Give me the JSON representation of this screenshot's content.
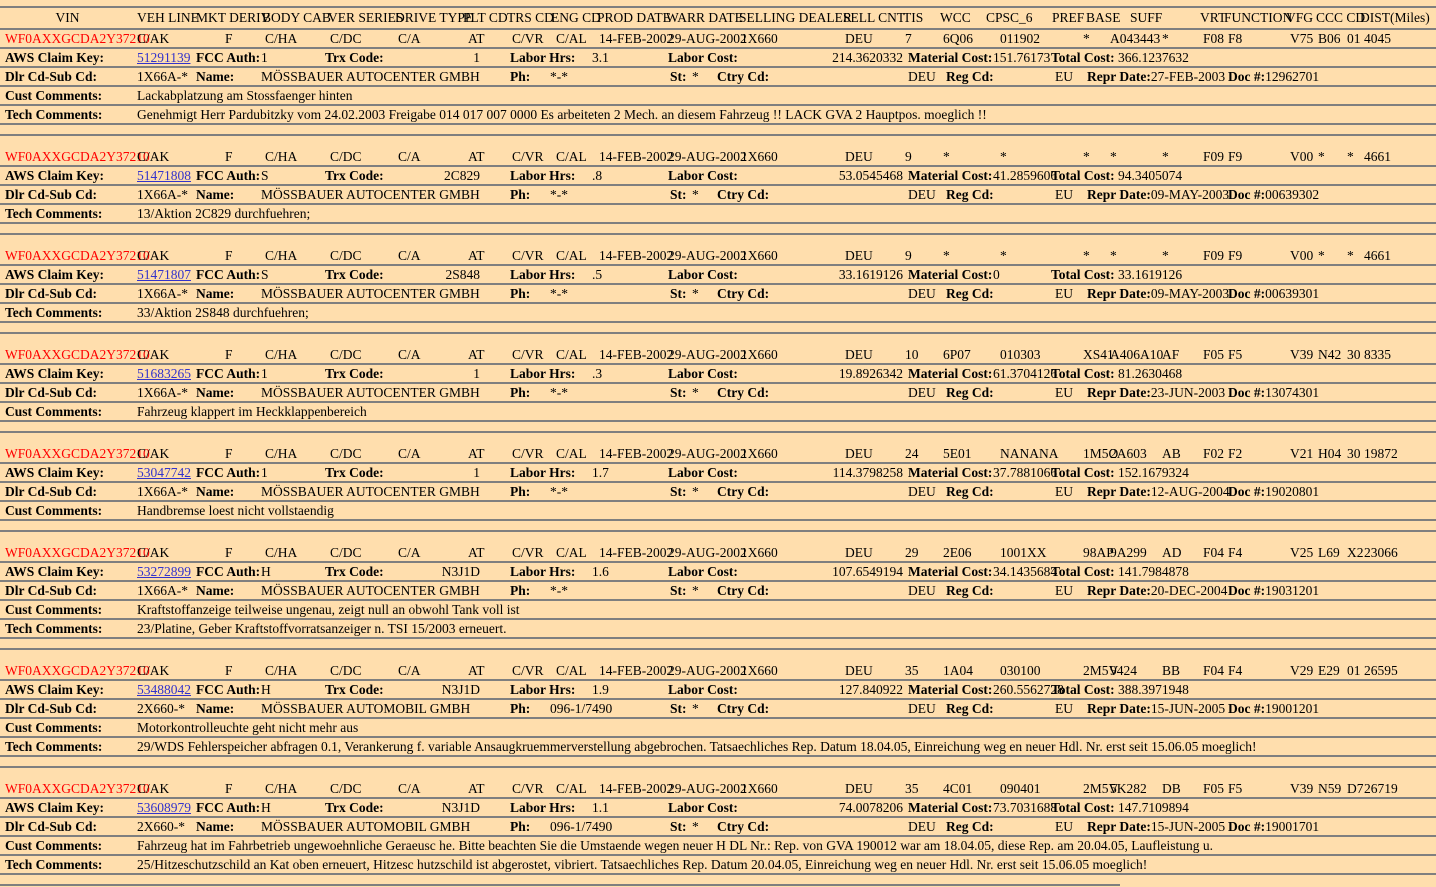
{
  "page": {
    "background": "#FFDEAD",
    "line_color": "#7F7F7F",
    "vin_color": "#FF0000",
    "link_color": "#3333CC"
  },
  "header": {
    "columns": [
      {
        "key": "vin",
        "label": "VIN"
      },
      {
        "key": "veh_line",
        "label": "VEH LINE"
      },
      {
        "key": "mkt_deriv",
        "label": "MKT DERIV"
      },
      {
        "key": "body_cab",
        "label": "BODY CAB"
      },
      {
        "key": "ver_series",
        "label": "VER SERIES"
      },
      {
        "key": "drive_type",
        "label": "DRIVE TYPE"
      },
      {
        "key": "plt_cd",
        "label": "PLT CD"
      },
      {
        "key": "trs_cd",
        "label": "TRS CD"
      },
      {
        "key": "eng_cd",
        "label": "ENG CD"
      },
      {
        "key": "prod_date",
        "label": "PROD DATE"
      },
      {
        "key": "warr_date",
        "label": "WARR DATE"
      },
      {
        "key": "selling_dealer",
        "label": "SELLING DEALER"
      },
      {
        "key": "sell_cnt",
        "label": "SELL CNT"
      },
      {
        "key": "tis",
        "label": "TIS"
      },
      {
        "key": "wcc",
        "label": "WCC"
      },
      {
        "key": "cpsc_6",
        "label": "CPSC_6"
      },
      {
        "key": "pref",
        "label": "PREF"
      },
      {
        "key": "base",
        "label": "BASE"
      },
      {
        "key": "suff",
        "label": "SUFF"
      },
      {
        "key": "vrt",
        "label": "VRT"
      },
      {
        "key": "function",
        "label": "FUNCTION"
      },
      {
        "key": "vfg",
        "label": "VFG"
      },
      {
        "key": "ccc_cd",
        "label": "CCC CD"
      },
      {
        "key": "dist",
        "label": "DIST(Miles)"
      }
    ]
  },
  "labels": {
    "claim_key": "AWS Claim Key:",
    "fcc_auth": "FCC Auth:",
    "trx_code": "Trx Code:",
    "labor_hrs": "Labor Hrs:",
    "labor_cost": "Labor Cost:",
    "material_cost": "Material Cost:",
    "total_cost": "Total Cost:",
    "dlr_cd_sub_cd": "Dlr Cd-Sub Cd:",
    "name": "Name:",
    "ph": "Ph:",
    "st": "St:",
    "ctry_cd": "Ctry Cd:",
    "reg_cd": "Reg Cd:",
    "repr_date": "Repr Date:",
    "doc_num": "Doc #:",
    "cust_comments": "Cust Comments:",
    "tech_comments": "Tech Comments:"
  },
  "records": [
    {
      "vin": "WF0AXXGCDA2Y37210",
      "grid": {
        "veh_line": "C/AK",
        "mkt_deriv": "F",
        "body_cab": "C/HA",
        "ver_series": "C/DC",
        "drive_type": "C/A",
        "plt_cd": "AT",
        "trs_cd": "C/VR",
        "eng_cd": "C/AL",
        "prod_date": "14-FEB-2002",
        "warr_date": "29-AUG-2002",
        "selling_dealer": "1X660",
        "sell_cnt": "DEU",
        "tis": "7",
        "wcc": "6Q06",
        "cpsc_6": "011902",
        "pref": "*",
        "base": "A043443",
        "suff": "*",
        "vrt": "F08",
        "function": "F8",
        "vfg": "V75",
        "ccc": "B06",
        "cd": "01",
        "dist": "4045"
      },
      "claim": {
        "key": "51291139",
        "fcc_auth": "1",
        "trx_code": "1",
        "labor_hrs": "3.1",
        "labor_cost": "214.3620332",
        "material_cost": "151.76173",
        "total_cost": "366.1237632"
      },
      "dealer": {
        "dlr_cd_sub_cd": "1X66A-*",
        "name": "MÖSSBAUER AUTOCENTER GMBH",
        "ph": "*-*",
        "st": "*",
        "ctry_cd": "DEU",
        "reg_cd": "EU",
        "repr_date": "27-FEB-2003",
        "doc_num": "12962701"
      },
      "comments": {
        "cust": "Lackabplatzung am Stossfaenger hinten",
        "tech": "Genehmigt Herr Pardubitzky vom 24.02.2003 Freigabe 014 017 007 0000 Es arbeiteten 2 Mech. an diesem Fahrzeug !! LACK GVA 2 Hauptpos. moeglich !!"
      }
    },
    {
      "vin": "WF0AXXGCDA2Y37210",
      "grid": {
        "veh_line": "C/AK",
        "mkt_deriv": "F",
        "body_cab": "C/HA",
        "ver_series": "C/DC",
        "drive_type": "C/A",
        "plt_cd": "AT",
        "trs_cd": "C/VR",
        "eng_cd": "C/AL",
        "prod_date": "14-FEB-2002",
        "warr_date": "29-AUG-2002",
        "selling_dealer": "1X660",
        "sell_cnt": "DEU",
        "tis": "9",
        "wcc": "*",
        "cpsc_6": "*",
        "pref": "*",
        "base": "*",
        "suff": "*",
        "vrt": "F09",
        "function": "F9",
        "vfg": "V00",
        "ccc": "*",
        "cd": "*",
        "dist": "4661"
      },
      "claim": {
        "key": "51471808",
        "fcc_auth": "S",
        "trx_code": "2C829",
        "labor_hrs": ".8",
        "labor_cost": "53.0545468",
        "material_cost": "41.2859606",
        "total_cost": "94.3405074"
      },
      "dealer": {
        "dlr_cd_sub_cd": "1X66A-*",
        "name": "MÖSSBAUER AUTOCENTER GMBH",
        "ph": "*-*",
        "st": "*",
        "ctry_cd": "DEU",
        "reg_cd": "EU",
        "repr_date": "09-MAY-2003",
        "doc_num": "00639302"
      },
      "comments": {
        "cust": null,
        "tech": "13/Aktion 2C829 durchfuehren;"
      }
    },
    {
      "vin": "WF0AXXGCDA2Y37210",
      "grid": {
        "veh_line": "C/AK",
        "mkt_deriv": "F",
        "body_cab": "C/HA",
        "ver_series": "C/DC",
        "drive_type": "C/A",
        "plt_cd": "AT",
        "trs_cd": "C/VR",
        "eng_cd": "C/AL",
        "prod_date": "14-FEB-2002",
        "warr_date": "29-AUG-2002",
        "selling_dealer": "1X660",
        "sell_cnt": "DEU",
        "tis": "9",
        "wcc": "*",
        "cpsc_6": "*",
        "pref": "*",
        "base": "*",
        "suff": "*",
        "vrt": "F09",
        "function": "F9",
        "vfg": "V00",
        "ccc": "*",
        "cd": "*",
        "dist": "4661"
      },
      "claim": {
        "key": "51471807",
        "fcc_auth": "S",
        "trx_code": "2S848",
        "labor_hrs": ".5",
        "labor_cost": "33.1619126",
        "material_cost": "0",
        "total_cost": "33.1619126"
      },
      "dealer": {
        "dlr_cd_sub_cd": "1X66A-*",
        "name": "MÖSSBAUER AUTOCENTER GMBH",
        "ph": "*-*",
        "st": "*",
        "ctry_cd": "DEU",
        "reg_cd": "EU",
        "repr_date": "09-MAY-2003",
        "doc_num": "00639301"
      },
      "comments": {
        "cust": null,
        "tech": "33/Aktion 2S848 durchfuehren;"
      }
    },
    {
      "vin": "WF0AXXGCDA2Y37210",
      "grid": {
        "veh_line": "C/AK",
        "mkt_deriv": "F",
        "body_cab": "C/HA",
        "ver_series": "C/DC",
        "drive_type": "C/A",
        "plt_cd": "AT",
        "trs_cd": "C/VR",
        "eng_cd": "C/AL",
        "prod_date": "14-FEB-2002",
        "warr_date": "29-AUG-2002",
        "selling_dealer": "1X660",
        "sell_cnt": "DEU",
        "tis": "10",
        "wcc": "6P07",
        "cpsc_6": "010303",
        "pref": "XS41",
        "base": "A406A10",
        "suff": "AF",
        "vrt": "F05",
        "function": "F5",
        "vfg": "V39",
        "ccc": "N42",
        "cd": "30",
        "dist": "8335"
      },
      "claim": {
        "key": "51683265",
        "fcc_auth": "1",
        "trx_code": "1",
        "labor_hrs": ".3",
        "labor_cost": "19.8926342",
        "material_cost": "61.3704126",
        "total_cost": "81.2630468"
      },
      "dealer": {
        "dlr_cd_sub_cd": "1X66A-*",
        "name": "MÖSSBAUER AUTOCENTER GMBH",
        "ph": "*-*",
        "st": "*",
        "ctry_cd": "DEU",
        "reg_cd": "EU",
        "repr_date": "23-JUN-2003",
        "doc_num": "13074301"
      },
      "comments": {
        "cust": "Fahrzeug klappert im Heckklappenbereich",
        "tech": null
      }
    },
    {
      "vin": "WF0AXXGCDA2Y37210",
      "grid": {
        "veh_line": "C/AK",
        "mkt_deriv": "F",
        "body_cab": "C/HA",
        "ver_series": "C/DC",
        "drive_type": "C/A",
        "plt_cd": "AT",
        "trs_cd": "C/VR",
        "eng_cd": "C/AL",
        "prod_date": "14-FEB-2002",
        "warr_date": "29-AUG-2002",
        "selling_dealer": "1X660",
        "sell_cnt": "DEU",
        "tis": "24",
        "wcc": "5E01",
        "cpsc_6": "NANANA",
        "pref": "1M5O",
        "base": "2A603",
        "suff": "AB",
        "vrt": "F02",
        "function": "F2",
        "vfg": "V21",
        "ccc": "H04",
        "cd": "30",
        "dist": "19872"
      },
      "claim": {
        "key": "53047742",
        "fcc_auth": "1",
        "trx_code": "1",
        "labor_hrs": "1.7",
        "labor_cost": "114.3798258",
        "material_cost": "37.7881066",
        "total_cost": "152.1679324"
      },
      "dealer": {
        "dlr_cd_sub_cd": "1X66A-*",
        "name": "MÖSSBAUER AUTOCENTER GMBH",
        "ph": "*-*",
        "st": "*",
        "ctry_cd": "DEU",
        "reg_cd": "EU",
        "repr_date": "12-AUG-2004",
        "doc_num": "19020801"
      },
      "comments": {
        "cust": "Handbremse loest nicht vollstaendig",
        "tech": null
      }
    },
    {
      "vin": "WF0AXXGCDA2Y37210",
      "grid": {
        "veh_line": "C/AK",
        "mkt_deriv": "F",
        "body_cab": "C/HA",
        "ver_series": "C/DC",
        "drive_type": "C/A",
        "plt_cd": "AT",
        "trs_cd": "C/VR",
        "eng_cd": "C/AL",
        "prod_date": "14-FEB-2002",
        "warr_date": "29-AUG-2002",
        "selling_dealer": "1X660",
        "sell_cnt": "DEU",
        "tis": "29",
        "wcc": "2E06",
        "cpsc_6": "1001XX",
        "pref": "98AP",
        "base": "9A299",
        "suff": "AD",
        "vrt": "F04",
        "function": "F4",
        "vfg": "V25",
        "ccc": "L69",
        "cd": "X2",
        "dist": "23066"
      },
      "claim": {
        "key": "53272899",
        "fcc_auth": "H",
        "trx_code": "N3J1D",
        "labor_hrs": "1.6",
        "labor_cost": "107.6549194",
        "material_cost": "34.1435684",
        "total_cost": "141.7984878"
      },
      "dealer": {
        "dlr_cd_sub_cd": "1X66A-*",
        "name": "MÖSSBAUER AUTOCENTER GMBH",
        "ph": "*-*",
        "st": "*",
        "ctry_cd": "DEU",
        "reg_cd": "EU",
        "repr_date": "20-DEC-2004",
        "doc_num": "19031201"
      },
      "comments": {
        "cust": "Kraftstoffanzeige teilweise ungenau, zeigt null an obwohl Tank voll ist",
        "tech": "23/Platine, Geber Kraftstoffvorratsanzeiger n. TSI 15/2003 erneuert."
      }
    },
    {
      "vin": "WF0AXXGCDA2Y37210",
      "grid": {
        "veh_line": "C/AK",
        "mkt_deriv": "F",
        "body_cab": "C/HA",
        "ver_series": "C/DC",
        "drive_type": "C/A",
        "plt_cd": "AT",
        "trs_cd": "C/VR",
        "eng_cd": "C/AL",
        "prod_date": "14-FEB-2002",
        "warr_date": "29-AUG-2002",
        "selling_dealer": "1X660",
        "sell_cnt": "DEU",
        "tis": "35",
        "wcc": "1A04",
        "cpsc_6": "030100",
        "pref": "2M5V",
        "base": "9424",
        "suff": "BB",
        "vrt": "F04",
        "function": "F4",
        "vfg": "V29",
        "ccc": "E29",
        "cd": "01",
        "dist": "26595"
      },
      "claim": {
        "key": "53488042",
        "fcc_auth": "H",
        "trx_code": "N3J1D",
        "labor_hrs": "1.9",
        "labor_cost": "127.840922",
        "material_cost": "260.5562728",
        "total_cost": "388.3971948"
      },
      "dealer": {
        "dlr_cd_sub_cd": "2X660-*",
        "name": "MÖSSBAUER AUTOMOBIL GMBH",
        "ph": "096-1/7490",
        "st": "*",
        "ctry_cd": "DEU",
        "reg_cd": "EU",
        "repr_date": "15-JUN-2005",
        "doc_num": "19001201"
      },
      "comments": {
        "cust": "Motorkontrolleuchte geht nicht mehr aus",
        "tech": "29/WDS Fehlerspeicher abfragen 0.1, Verankerung f. variable Ansaugkruemmerverstellung abgebrochen. Tatsaechliches Rep. Datum 18.04.05, Einreichung weg en neuer Hdl. Nr. erst seit 15.06.05 moeglich!"
      }
    },
    {
      "vin": "WF0AXXGCDA2Y37210",
      "grid": {
        "veh_line": "C/AK",
        "mkt_deriv": "F",
        "body_cab": "C/HA",
        "ver_series": "C/DC",
        "drive_type": "C/A",
        "plt_cd": "AT",
        "trs_cd": "C/VR",
        "eng_cd": "C/AL",
        "prod_date": "14-FEB-2002",
        "warr_date": "29-AUG-2002",
        "selling_dealer": "1X660",
        "sell_cnt": "DEU",
        "tis": "35",
        "wcc": "4C01",
        "cpsc_6": "090401",
        "pref": "2M5V",
        "base": "5K282",
        "suff": "DB",
        "vrt": "F05",
        "function": "F5",
        "vfg": "V39",
        "ccc": "N59",
        "cd": "D7",
        "dist": "26719"
      },
      "claim": {
        "key": "53608979",
        "fcc_auth": "H",
        "trx_code": "N3J1D",
        "labor_hrs": "1.1",
        "labor_cost": "74.0078206",
        "material_cost": "73.7031688",
        "total_cost": "147.7109894"
      },
      "dealer": {
        "dlr_cd_sub_cd": "2X660-*",
        "name": "MÖSSBAUER AUTOMOBIL GMBH",
        "ph": "096-1/7490",
        "st": "*",
        "ctry_cd": "DEU",
        "reg_cd": "EU",
        "repr_date": "15-JUN-2005",
        "doc_num": "19001701"
      },
      "comments": {
        "cust": "Fahrzeug hat im Fahrbetrieb ungewoehnliche Geraeusc he. Bitte beachten Sie die Umstaende wegen neuer H DL Nr.: Rep. von GVA 190012 war am 18.04.05, diese Rep. am 20.04.05, Laufleistung u.",
        "tech": "25/Hitzeschutzschild an Kat oben erneuert, Hitzesc hutzschild ist abgerostet, vibriert. Tatsaechliches Rep. Datum 20.04.05, Einreichung weg en neuer Hdl. Nr. erst seit 15.06.05 moeglich!"
      }
    }
  ]
}
